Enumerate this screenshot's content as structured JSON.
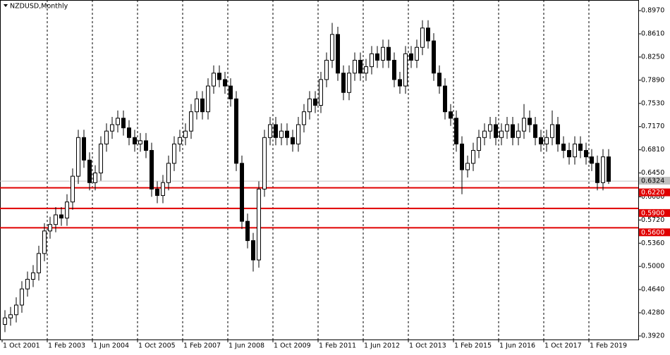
{
  "chart_data": {
    "type": "candlestick",
    "title": "NZDUSD,Monthly",
    "categories": [
      "1 Oct 2001",
      null,
      null,
      null,
      null,
      null,
      null,
      null,
      "1 Feb 2003",
      null,
      null,
      null,
      null,
      null,
      null,
      null,
      "1 Jun 2004",
      null,
      null,
      null,
      null,
      null,
      null,
      null,
      "1 Oct 2005",
      null,
      null,
      null,
      null,
      null,
      null,
      null,
      "1 Feb 2007",
      null,
      null,
      null,
      null,
      null,
      null,
      null,
      "1 Jun 2008",
      null,
      null,
      null,
      null,
      null,
      null,
      null,
      "1 Oct 2009",
      null,
      null,
      null,
      null,
      null,
      null,
      null,
      "1 Feb 2011",
      null,
      null,
      null,
      null,
      null,
      null,
      null,
      "1 Jun 2012",
      null,
      null,
      null,
      null,
      null,
      null,
      null,
      "1 Oct 2013",
      null,
      null,
      null,
      null,
      null,
      null,
      null,
      "1 Feb 2015",
      null,
      null,
      null,
      null,
      null,
      null,
      null,
      "1 Jun 2016",
      null,
      null,
      null,
      null,
      null,
      null,
      null,
      "1 Oct 2017",
      null,
      null,
      null,
      null,
      null,
      null,
      null,
      "1 Feb 2019",
      null,
      null,
      null
    ],
    "open": [
      0.41,
      0.42,
      0.425,
      0.44,
      0.465,
      0.48,
      0.49,
      0.52,
      0.555,
      0.565,
      0.58,
      0.575,
      0.6,
      0.64,
      0.7,
      0.665,
      0.63,
      0.645,
      0.69,
      0.71,
      0.72,
      0.73,
      0.715,
      0.7,
      0.69,
      0.695,
      0.68,
      0.62,
      0.61,
      0.63,
      0.66,
      0.69,
      0.7,
      0.71,
      0.74,
      0.76,
      0.74,
      0.78,
      0.8,
      0.79,
      0.78,
      0.76,
      0.66,
      0.57,
      0.54,
      0.51,
      0.62,
      0.7,
      0.72,
      0.7,
      0.71,
      0.7,
      0.69,
      0.72,
      0.74,
      0.76,
      0.75,
      0.79,
      0.82,
      0.86,
      0.8,
      0.77,
      0.8,
      0.82,
      0.8,
      0.81,
      0.83,
      0.82,
      0.84,
      0.82,
      0.79,
      0.78,
      0.83,
      0.82,
      0.84,
      0.87,
      0.85,
      0.8,
      0.78,
      0.74,
      0.73,
      0.69,
      0.65,
      0.66,
      0.68,
      0.7,
      0.71,
      0.72,
      0.7,
      0.71,
      0.72,
      0.7,
      0.71,
      0.73,
      0.72,
      0.7,
      0.69,
      0.7,
      0.72,
      0.69,
      0.68,
      0.67,
      0.69,
      0.68,
      0.67,
      0.66,
      0.63,
      0.67
    ],
    "high": [
      0.432,
      0.437,
      0.452,
      0.477,
      0.492,
      0.502,
      0.532,
      0.567,
      0.577,
      0.592,
      0.592,
      0.612,
      0.652,
      0.712,
      0.712,
      0.677,
      0.657,
      0.702,
      0.722,
      0.732,
      0.742,
      0.742,
      0.727,
      0.712,
      0.707,
      0.707,
      0.692,
      0.632,
      0.642,
      0.672,
      0.702,
      0.712,
      0.722,
      0.752,
      0.772,
      0.772,
      0.792,
      0.812,
      0.812,
      0.802,
      0.792,
      0.772,
      0.672,
      0.582,
      0.552,
      0.632,
      0.712,
      0.732,
      0.732,
      0.722,
      0.722,
      0.712,
      0.732,
      0.752,
      0.772,
      0.772,
      0.802,
      0.832,
      0.878,
      0.872,
      0.812,
      0.812,
      0.832,
      0.832,
      0.822,
      0.842,
      0.842,
      0.852,
      0.852,
      0.832,
      0.802,
      0.842,
      0.842,
      0.852,
      0.882,
      0.882,
      0.862,
      0.812,
      0.792,
      0.752,
      0.742,
      0.702,
      0.672,
      0.692,
      0.712,
      0.722,
      0.732,
      0.732,
      0.722,
      0.732,
      0.732,
      0.722,
      0.752,
      0.742,
      0.732,
      0.712,
      0.712,
      0.742,
      0.732,
      0.702,
      0.692,
      0.702,
      0.702,
      0.692,
      0.682,
      0.672,
      0.682,
      0.682
    ],
    "low": [
      0.398,
      0.408,
      0.413,
      0.428,
      0.453,
      0.468,
      0.478,
      0.508,
      0.543,
      0.553,
      0.563,
      0.563,
      0.588,
      0.628,
      0.653,
      0.618,
      0.618,
      0.633,
      0.678,
      0.698,
      0.708,
      0.703,
      0.688,
      0.678,
      0.678,
      0.668,
      0.608,
      0.598,
      0.598,
      0.618,
      0.648,
      0.678,
      0.688,
      0.698,
      0.728,
      0.728,
      0.728,
      0.768,
      0.778,
      0.768,
      0.748,
      0.648,
      0.558,
      0.528,
      0.492,
      0.498,
      0.608,
      0.688,
      0.688,
      0.688,
      0.688,
      0.678,
      0.678,
      0.708,
      0.728,
      0.738,
      0.738,
      0.778,
      0.808,
      0.788,
      0.758,
      0.758,
      0.788,
      0.788,
      0.788,
      0.798,
      0.808,
      0.808,
      0.808,
      0.778,
      0.768,
      0.768,
      0.808,
      0.808,
      0.828,
      0.838,
      0.788,
      0.768,
      0.728,
      0.718,
      0.678,
      0.612,
      0.638,
      0.648,
      0.668,
      0.688,
      0.698,
      0.688,
      0.688,
      0.698,
      0.688,
      0.688,
      0.698,
      0.708,
      0.688,
      0.678,
      0.678,
      0.688,
      0.678,
      0.668,
      0.658,
      0.658,
      0.668,
      0.658,
      0.648,
      0.618,
      0.618,
      0.628
    ],
    "close": [
      0.42,
      0.425,
      0.44,
      0.465,
      0.48,
      0.49,
      0.52,
      0.555,
      0.565,
      0.58,
      0.575,
      0.6,
      0.64,
      0.7,
      0.665,
      0.63,
      0.645,
      0.69,
      0.71,
      0.72,
      0.73,
      0.715,
      0.7,
      0.69,
      0.695,
      0.68,
      0.62,
      0.61,
      0.63,
      0.66,
      0.69,
      0.7,
      0.71,
      0.74,
      0.76,
      0.74,
      0.78,
      0.8,
      0.79,
      0.78,
      0.76,
      0.66,
      0.57,
      0.54,
      0.51,
      0.62,
      0.7,
      0.72,
      0.7,
      0.71,
      0.7,
      0.69,
      0.72,
      0.74,
      0.76,
      0.75,
      0.79,
      0.82,
      0.86,
      0.8,
      0.77,
      0.8,
      0.82,
      0.8,
      0.81,
      0.83,
      0.82,
      0.84,
      0.82,
      0.79,
      0.78,
      0.83,
      0.82,
      0.84,
      0.87,
      0.85,
      0.8,
      0.78,
      0.74,
      0.73,
      0.69,
      0.65,
      0.66,
      0.68,
      0.7,
      0.71,
      0.72,
      0.7,
      0.71,
      0.72,
      0.7,
      0.71,
      0.73,
      0.72,
      0.7,
      0.69,
      0.7,
      0.72,
      0.69,
      0.68,
      0.67,
      0.69,
      0.68,
      0.67,
      0.66,
      0.63,
      0.67,
      0.632
    ],
    "up_color": "#ffffff",
    "down_color": "#000000",
    "ylim": [
      0.3865,
      0.9135
    ],
    "yticks": [
      {
        "value": 0.897,
        "label": "0.8970"
      },
      {
        "value": 0.861,
        "label": "0.8610"
      },
      {
        "value": 0.825,
        "label": "0.8250"
      },
      {
        "value": 0.789,
        "label": "0.7890"
      },
      {
        "value": 0.753,
        "label": "0.7530"
      },
      {
        "value": 0.717,
        "label": "0.7170"
      },
      {
        "value": 0.681,
        "label": "0.6810"
      },
      {
        "value": 0.645,
        "label": "0.6450"
      },
      {
        "value": 0.608,
        "label": "0.6080"
      },
      {
        "value": 0.572,
        "label": "0.5720"
      },
      {
        "value": 0.536,
        "label": "0.5360"
      },
      {
        "value": 0.5,
        "label": "0.5000"
      },
      {
        "value": 0.464,
        "label": "0.4640"
      },
      {
        "value": 0.428,
        "label": "0.4280"
      },
      {
        "value": 0.392,
        "label": "0.3920"
      }
    ],
    "price_line": {
      "value": 0.6324,
      "color": "#c0c0c0"
    },
    "levels": [
      {
        "value": 0.622,
        "label": "0.6220"
      },
      {
        "value": 0.59,
        "label": "0.5900"
      },
      {
        "value": 0.56,
        "label": "0.5600"
      }
    ],
    "level_color": "#e00000",
    "grid": true
  }
}
